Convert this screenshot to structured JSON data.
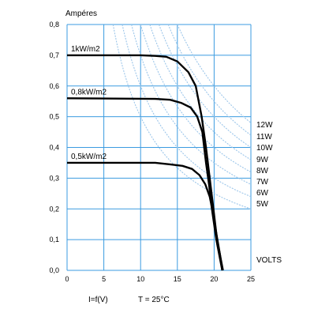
{
  "chart_data": {
    "type": "line",
    "ylabel": "Ampéres",
    "xlabel": "VOLTS",
    "footer_left": "I=f(V)",
    "footer_right": "T = 25°C",
    "xlim": [
      0,
      25
    ],
    "ylim": [
      0,
      0.8
    ],
    "x_ticks": [
      "0",
      "5",
      "10",
      "15",
      "20",
      "25"
    ],
    "y_ticks": [
      "0,0",
      "0,1",
      "0,2",
      "0,3",
      "0,4",
      "0,5",
      "0,6",
      "0,7",
      "0,8"
    ],
    "grid": true,
    "series": [
      {
        "name": "1kW/m2",
        "points": [
          [
            0,
            0.7
          ],
          [
            10,
            0.7
          ],
          [
            12,
            0.698
          ],
          [
            13.5,
            0.695
          ],
          [
            15,
            0.68
          ],
          [
            16.5,
            0.645
          ],
          [
            17.5,
            0.6
          ],
          [
            18.3,
            0.5
          ],
          [
            18.9,
            0.4
          ],
          [
            19.4,
            0.3
          ],
          [
            19.9,
            0.2
          ],
          [
            20.4,
            0.1
          ],
          [
            21.2,
            0.0
          ]
        ]
      },
      {
        "name": "0,8kW/m2",
        "points": [
          [
            0,
            0.56
          ],
          [
            12,
            0.558
          ],
          [
            14,
            0.555
          ],
          [
            15.5,
            0.545
          ],
          [
            16.8,
            0.53
          ],
          [
            17.7,
            0.5
          ],
          [
            18.4,
            0.45
          ],
          [
            18.9,
            0.35
          ],
          [
            19.3,
            0.28
          ],
          [
            19.7,
            0.2
          ],
          [
            20.3,
            0.1
          ],
          [
            21.1,
            0.0
          ]
        ]
      },
      {
        "name": "0,5kW/m2",
        "points": [
          [
            0,
            0.35
          ],
          [
            12,
            0.35
          ],
          [
            14,
            0.345
          ],
          [
            15.7,
            0.34
          ],
          [
            17,
            0.33
          ],
          [
            18,
            0.31
          ],
          [
            18.8,
            0.28
          ],
          [
            19.4,
            0.24
          ],
          [
            19.9,
            0.18
          ],
          [
            20.3,
            0.12
          ],
          [
            20.8,
            0.05
          ],
          [
            21.1,
            0.0
          ]
        ]
      }
    ],
    "power_curves": [
      {
        "label": "12W",
        "watts": 12
      },
      {
        "label": "11W",
        "watts": 11
      },
      {
        "label": "10W",
        "watts": 10
      },
      {
        "label": "9W",
        "watts": 9
      },
      {
        "label": "8W",
        "watts": 8
      },
      {
        "label": "7W",
        "watts": 7
      },
      {
        "label": "6W",
        "watts": 6
      },
      {
        "label": "5W",
        "watts": 5
      }
    ]
  }
}
